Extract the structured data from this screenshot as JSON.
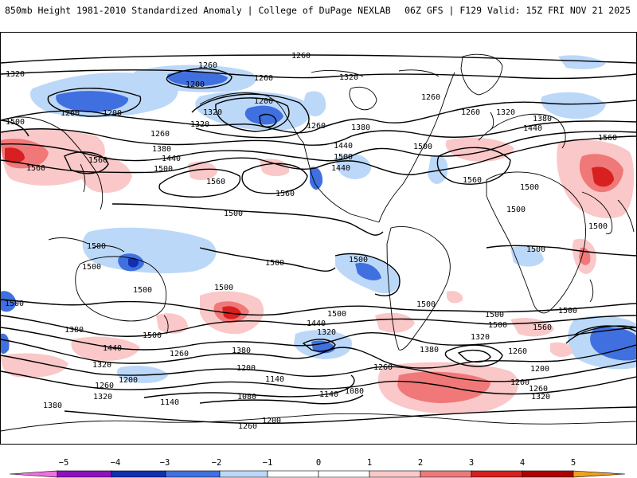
{
  "header": {
    "title_left": "850mb Height 1981-2010 Standardized Anomaly | College of DuPage NEXLAB",
    "title_right": "06Z GFS | F129 Valid: 15Z FRI NOV 21 2025"
  },
  "colors": {
    "neg5": "#f070e0",
    "neg4": "#9010c0",
    "neg3": "#1030b0",
    "neg2": "#4070e0",
    "neg1": "#bcd8f8",
    "zero": "#ffffff",
    "pos1": "#fac8c8",
    "pos2": "#f07878",
    "pos3": "#d82020",
    "pos4": "#b00000",
    "pos5": "#f0a020"
  },
  "colorbar": {
    "ticks": [
      "−5",
      "−4",
      "−3",
      "−2",
      "−1",
      "0",
      "1",
      "2",
      "3",
      "4",
      "5"
    ]
  },
  "contour_labels": [
    {
      "text": "1260"
    },
    {
      "text": "1320"
    },
    {
      "text": "1260"
    },
    {
      "text": "1200"
    },
    {
      "text": "1260"
    },
    {
      "text": "1200"
    },
    {
      "text": "1260"
    },
    {
      "text": "1320"
    },
    {
      "text": "1500"
    },
    {
      "text": "1260"
    },
    {
      "text": "1320"
    },
    {
      "text": "1200"
    },
    {
      "text": "1260"
    },
    {
      "text": "1320"
    },
    {
      "text": "1380"
    },
    {
      "text": "1440"
    },
    {
      "text": "1500"
    },
    {
      "text": "1260"
    },
    {
      "text": "1260"
    },
    {
      "text": "1320"
    },
    {
      "text": "1380"
    },
    {
      "text": "1440"
    },
    {
      "text": "1560"
    },
    {
      "text": "1560"
    },
    {
      "text": "1380"
    },
    {
      "text": "1440"
    },
    {
      "text": "1500"
    },
    {
      "text": "1560"
    },
    {
      "text": "1560"
    },
    {
      "text": "1500"
    },
    {
      "text": "1440"
    },
    {
      "text": "1500"
    },
    {
      "text": "1560"
    },
    {
      "text": "1500"
    },
    {
      "text": "1500"
    },
    {
      "text": "1500"
    },
    {
      "text": "1560"
    },
    {
      "text": "1500"
    },
    {
      "text": "1500"
    },
    {
      "text": "1500"
    },
    {
      "text": "1500"
    },
    {
      "text": "1500"
    },
    {
      "text": "1500"
    },
    {
      "text": "1500"
    },
    {
      "text": "1500"
    },
    {
      "text": "1500"
    },
    {
      "text": "1500"
    },
    {
      "text": "1440"
    },
    {
      "text": "1500"
    },
    {
      "text": "1500"
    },
    {
      "text": "1500"
    },
    {
      "text": "1500"
    },
    {
      "text": "1440"
    },
    {
      "text": "1560"
    },
    {
      "text": "1380"
    },
    {
      "text": "1320"
    },
    {
      "text": "1260"
    },
    {
      "text": "1200"
    },
    {
      "text": "1140"
    },
    {
      "text": "1080"
    },
    {
      "text": "1140"
    },
    {
      "text": "1380"
    },
    {
      "text": "1440"
    },
    {
      "text": "1320"
    },
    {
      "text": "1260"
    },
    {
      "text": "1200"
    },
    {
      "text": "1140"
    },
    {
      "text": "1080"
    },
    {
      "text": "1200"
    },
    {
      "text": "1260"
    },
    {
      "text": "1320"
    },
    {
      "text": "1380"
    },
    {
      "text": "1320"
    },
    {
      "text": "1260"
    },
    {
      "text": "1200"
    },
    {
      "text": "1260"
    },
    {
      "text": "1380"
    },
    {
      "text": "1320"
    },
    {
      "text": "1200"
    },
    {
      "text": "1260"
    },
    {
      "text": "1320"
    }
  ]
}
